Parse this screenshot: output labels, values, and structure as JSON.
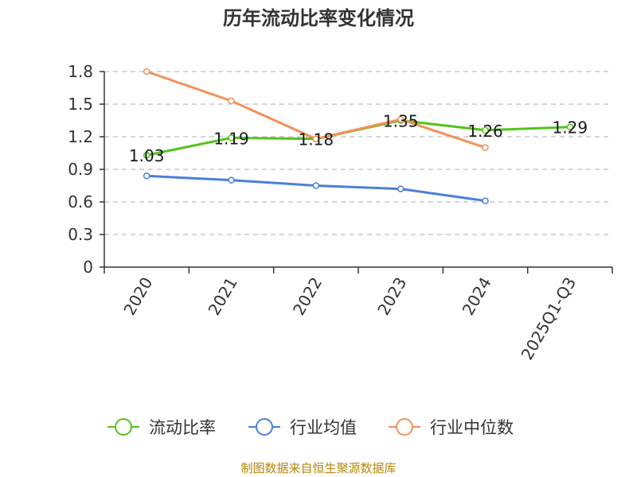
{
  "chart_data": {
    "type": "line",
    "title": "历年流动比率变化情况",
    "categories": [
      "2020",
      "2021",
      "2022",
      "2023",
      "2024",
      "2025Q1-Q3"
    ],
    "ylim": [
      0,
      1.8
    ],
    "yticks": [
      0,
      0.3,
      0.6,
      0.9,
      1.2,
      1.5,
      1.8
    ],
    "ytick_labels": [
      "0",
      "0.3",
      "0.6",
      "0.9",
      "1.2",
      "1.5",
      "1.8"
    ],
    "grid": true,
    "xlabel": "",
    "ylabel": "",
    "legend_position": "bottom",
    "series": [
      {
        "name": "流动比率",
        "color": "#52c41a",
        "values": [
          1.03,
          1.19,
          1.18,
          1.35,
          1.26,
          1.29
        ],
        "labels": [
          "1.03",
          "1.19",
          "1.18",
          "1.35",
          "1.26",
          "1.29"
        ]
      },
      {
        "name": "行业均值",
        "color": "#4a7fd9",
        "values": [
          0.84,
          0.8,
          0.75,
          0.72,
          0.61,
          null
        ]
      },
      {
        "name": "行业中位数",
        "color": "#f4915a",
        "values": [
          1.8,
          1.53,
          1.18,
          1.36,
          1.1,
          null
        ]
      }
    ]
  },
  "footer": "制图数据来自恒生聚源数据库"
}
